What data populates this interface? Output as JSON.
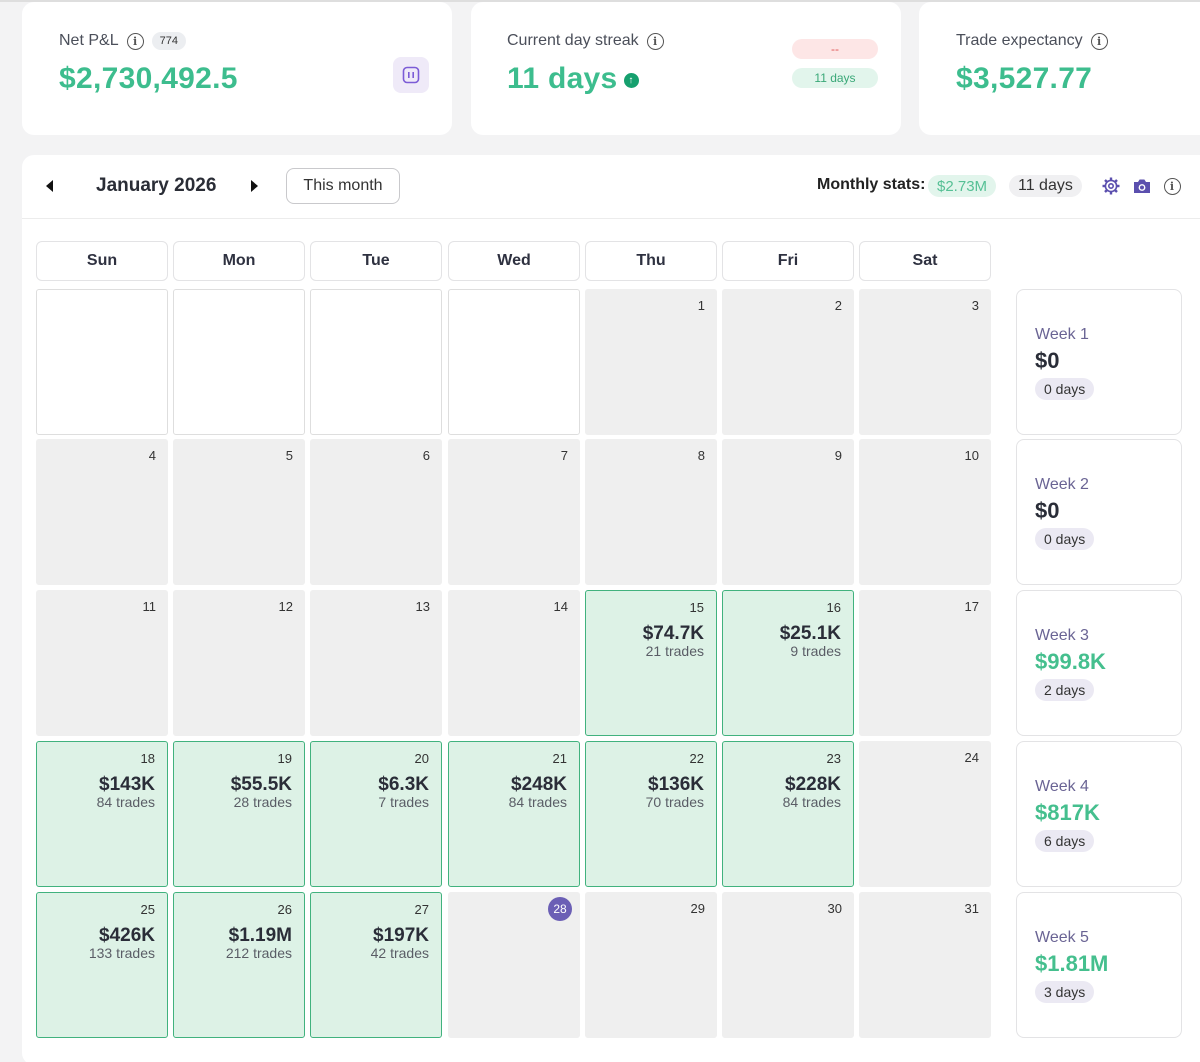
{
  "cards": {
    "net_pnl": {
      "label": "Net P&L",
      "count": "774",
      "value": "$2,730,492.5"
    },
    "streak": {
      "label": "Current day streak",
      "value": "11 days",
      "losing_pill": "--",
      "winning_pill": "11 days"
    },
    "expectancy": {
      "label": "Trade expectancy",
      "value": "$3,527.77"
    }
  },
  "calendar": {
    "month_label": "January 2026",
    "this_month_label": "This month",
    "monthly_stats_label": "Monthly stats:",
    "monthly_pnl": "$2.73M",
    "monthly_days": "11 days",
    "weekdays": [
      "Sun",
      "Mon",
      "Tue",
      "Wed",
      "Thu",
      "Fri",
      "Sat"
    ],
    "days": [
      {
        "num": "",
        "type": "empty"
      },
      {
        "num": "",
        "type": "empty"
      },
      {
        "num": "",
        "type": "empty"
      },
      {
        "num": "",
        "type": "empty"
      },
      {
        "num": "1",
        "type": "plain"
      },
      {
        "num": "2",
        "type": "plain"
      },
      {
        "num": "3",
        "type": "plain"
      },
      {
        "num": "4",
        "type": "plain"
      },
      {
        "num": "5",
        "type": "plain"
      },
      {
        "num": "6",
        "type": "plain"
      },
      {
        "num": "7",
        "type": "plain"
      },
      {
        "num": "8",
        "type": "plain"
      },
      {
        "num": "9",
        "type": "plain"
      },
      {
        "num": "10",
        "type": "plain"
      },
      {
        "num": "11",
        "type": "plain"
      },
      {
        "num": "12",
        "type": "plain"
      },
      {
        "num": "13",
        "type": "plain"
      },
      {
        "num": "14",
        "type": "plain"
      },
      {
        "num": "15",
        "type": "win",
        "pnl": "$74.7K",
        "trades": "21 trades"
      },
      {
        "num": "16",
        "type": "win",
        "pnl": "$25.1K",
        "trades": "9 trades"
      },
      {
        "num": "17",
        "type": "plain"
      },
      {
        "num": "18",
        "type": "win",
        "pnl": "$143K",
        "trades": "84 trades"
      },
      {
        "num": "19",
        "type": "win",
        "pnl": "$55.5K",
        "trades": "28 trades"
      },
      {
        "num": "20",
        "type": "win",
        "pnl": "$6.3K",
        "trades": "7 trades"
      },
      {
        "num": "21",
        "type": "win",
        "pnl": "$248K",
        "trades": "84 trades"
      },
      {
        "num": "22",
        "type": "win",
        "pnl": "$136K",
        "trades": "70 trades"
      },
      {
        "num": "23",
        "type": "win",
        "pnl": "$228K",
        "trades": "84 trades"
      },
      {
        "num": "24",
        "type": "plain"
      },
      {
        "num": "25",
        "type": "win",
        "pnl": "$426K",
        "trades": "133 trades"
      },
      {
        "num": "26",
        "type": "win",
        "pnl": "$1.19M",
        "trades": "212 trades"
      },
      {
        "num": "27",
        "type": "win",
        "pnl": "$197K",
        "trades": "42 trades"
      },
      {
        "num": "28",
        "type": "today"
      },
      {
        "num": "29",
        "type": "plain"
      },
      {
        "num": "30",
        "type": "plain"
      },
      {
        "num": "31",
        "type": "plain"
      }
    ],
    "weeks": [
      {
        "label": "Week 1",
        "value": "$0",
        "days": "0 days",
        "positive": false
      },
      {
        "label": "Week 2",
        "value": "$0",
        "days": "0 days",
        "positive": false
      },
      {
        "label": "Week 3",
        "value": "$99.8K",
        "days": "2 days",
        "positive": true
      },
      {
        "label": "Week 4",
        "value": "$817K",
        "days": "6 days",
        "positive": true
      },
      {
        "label": "Week 5",
        "value": "$1.81M",
        "days": "3 days",
        "positive": true
      }
    ]
  }
}
